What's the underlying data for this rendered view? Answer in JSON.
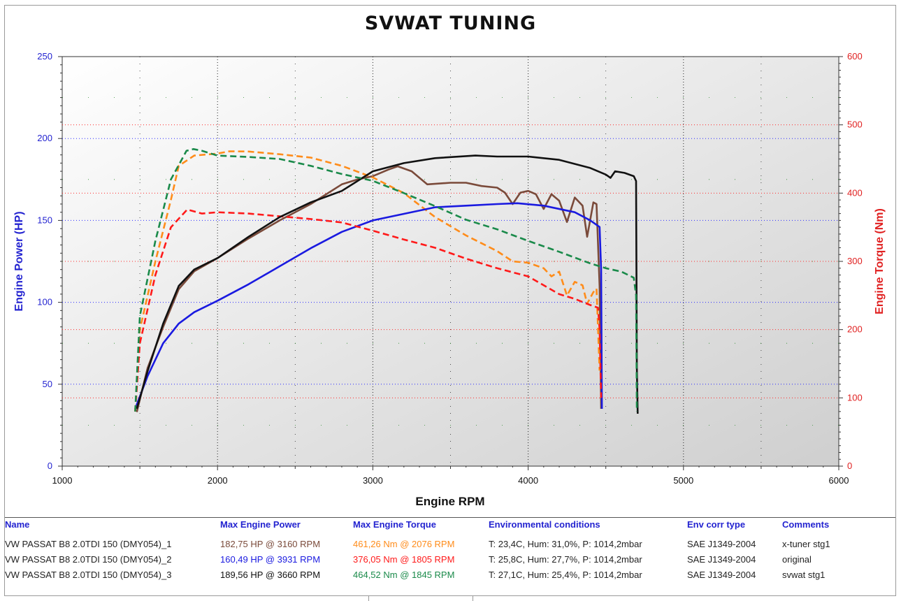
{
  "chart_data": {
    "type": "line",
    "title": "SVWAT TUNING",
    "xlabel": "Engine RPM",
    "ylabel_left": "Engine Power (HP)",
    "ylabel_right": "Engine Torque (Nm)",
    "xlim": [
      1000,
      6000
    ],
    "ylim_left": [
      0,
      250
    ],
    "ylim_right": [
      0,
      600
    ],
    "x_ticks": [
      "1000",
      "2000",
      "3000",
      "4000",
      "5000",
      "6000"
    ],
    "y_ticks_left": [
      "0",
      "50",
      "100",
      "150",
      "200",
      "250"
    ],
    "y_ticks_right": [
      "0",
      "100",
      "200",
      "300",
      "400",
      "500",
      "600"
    ],
    "grid": true,
    "series": [
      {
        "name": "VW PASSAT B8 2.0TDI 150 (DMY054)_1",
        "kind": "power",
        "axis": "left",
        "color": "#7a4a3a",
        "dash": "solid",
        "points": [
          [
            1480,
            33
          ],
          [
            1550,
            60
          ],
          [
            1650,
            85
          ],
          [
            1750,
            108
          ],
          [
            1850,
            119
          ],
          [
            2000,
            127
          ],
          [
            2200,
            139
          ],
          [
            2400,
            150
          ],
          [
            2600,
            160
          ],
          [
            2800,
            172
          ],
          [
            2900,
            175
          ],
          [
            3000,
            177
          ],
          [
            3100,
            181
          ],
          [
            3160,
            183
          ],
          [
            3250,
            180
          ],
          [
            3350,
            172
          ],
          [
            3500,
            173
          ],
          [
            3600,
            173
          ],
          [
            3700,
            171
          ],
          [
            3800,
            170
          ],
          [
            3850,
            167
          ],
          [
            3900,
            160
          ],
          [
            3950,
            167
          ],
          [
            4000,
            168
          ],
          [
            4050,
            166
          ],
          [
            4100,
            157
          ],
          [
            4150,
            166
          ],
          [
            4200,
            162
          ],
          [
            4250,
            149
          ],
          [
            4300,
            164
          ],
          [
            4350,
            159
          ],
          [
            4380,
            140
          ],
          [
            4420,
            161
          ],
          [
            4440,
            160
          ],
          [
            4460,
            110
          ],
          [
            4470,
            35
          ]
        ]
      },
      {
        "name": "VW PASSAT B8 2.0TDI 150 (DMY054)_1",
        "kind": "torque",
        "axis": "right",
        "color": "#ff8c1a",
        "dash": "dashed",
        "points": [
          [
            1470,
            80
          ],
          [
            1500,
            200
          ],
          [
            1600,
            300
          ],
          [
            1700,
            390
          ],
          [
            1750,
            440
          ],
          [
            1850,
            455
          ],
          [
            2000,
            458
          ],
          [
            2076,
            461.3
          ],
          [
            2200,
            461
          ],
          [
            2400,
            457
          ],
          [
            2600,
            452
          ],
          [
            2800,
            440
          ],
          [
            3000,
            423
          ],
          [
            3200,
            400
          ],
          [
            3400,
            365
          ],
          [
            3600,
            338
          ],
          [
            3800,
            315
          ],
          [
            3900,
            300
          ],
          [
            4000,
            298
          ],
          [
            4100,
            290
          ],
          [
            4150,
            278
          ],
          [
            4200,
            285
          ],
          [
            4250,
            250
          ],
          [
            4300,
            270
          ],
          [
            4350,
            265
          ],
          [
            4380,
            238
          ],
          [
            4420,
            255
          ],
          [
            4440,
            260
          ],
          [
            4450,
            200
          ],
          [
            4460,
            140
          ]
        ]
      },
      {
        "name": "VW PASSAT B8 2.0TDI 150 (DMY054)_2",
        "kind": "power",
        "axis": "left",
        "color": "#1a1ae0",
        "dash": "solid",
        "points": [
          [
            1470,
            35
          ],
          [
            1550,
            55
          ],
          [
            1650,
            75
          ],
          [
            1750,
            87
          ],
          [
            1850,
            94
          ],
          [
            2000,
            101
          ],
          [
            2200,
            111
          ],
          [
            2400,
            122
          ],
          [
            2600,
            133
          ],
          [
            2800,
            143
          ],
          [
            3000,
            150
          ],
          [
            3200,
            154
          ],
          [
            3400,
            158
          ],
          [
            3600,
            159
          ],
          [
            3800,
            160
          ],
          [
            3931,
            160.5
          ],
          [
            4100,
            159
          ],
          [
            4300,
            155
          ],
          [
            4400,
            150
          ],
          [
            4460,
            146
          ],
          [
            4470,
            120
          ],
          [
            4475,
            35
          ]
        ]
      },
      {
        "name": "VW PASSAT B8 2.0TDI 150 (DMY054)_2",
        "kind": "torque",
        "axis": "right",
        "color": "#ff1a1a",
        "dash": "dashed",
        "points": [
          [
            1470,
            80
          ],
          [
            1500,
            180
          ],
          [
            1600,
            280
          ],
          [
            1700,
            350
          ],
          [
            1805,
            376
          ],
          [
            1900,
            370
          ],
          [
            2000,
            372
          ],
          [
            2200,
            370
          ],
          [
            2400,
            366
          ],
          [
            2600,
            362
          ],
          [
            2800,
            357
          ],
          [
            3000,
            345
          ],
          [
            3200,
            332
          ],
          [
            3400,
            320
          ],
          [
            3600,
            304
          ],
          [
            3800,
            290
          ],
          [
            4000,
            278
          ],
          [
            4200,
            252
          ],
          [
            4300,
            245
          ],
          [
            4400,
            236
          ],
          [
            4450,
            232
          ],
          [
            4460,
            200
          ],
          [
            4470,
            100
          ]
        ]
      },
      {
        "name": "VW PASSAT B8 2.0TDI 150 (DMY054)_3",
        "kind": "power",
        "axis": "left",
        "color": "#111111",
        "dash": "solid",
        "points": [
          [
            1480,
            35
          ],
          [
            1550,
            58
          ],
          [
            1650,
            87
          ],
          [
            1750,
            110
          ],
          [
            1850,
            120
          ],
          [
            2000,
            127
          ],
          [
            2200,
            140
          ],
          [
            2400,
            152
          ],
          [
            2600,
            161
          ],
          [
            2800,
            168
          ],
          [
            3000,
            180
          ],
          [
            3200,
            185
          ],
          [
            3400,
            188
          ],
          [
            3660,
            189.6
          ],
          [
            3800,
            189
          ],
          [
            4000,
            189
          ],
          [
            4200,
            187
          ],
          [
            4400,
            182
          ],
          [
            4500,
            178
          ],
          [
            4530,
            176
          ],
          [
            4560,
            180
          ],
          [
            4620,
            179
          ],
          [
            4680,
            177
          ],
          [
            4695,
            174
          ],
          [
            4700,
            60
          ],
          [
            4705,
            32
          ]
        ]
      },
      {
        "name": "VW PASSAT B8 2.0TDI 150 (DMY054)_3",
        "kind": "torque",
        "axis": "right",
        "color": "#1a8a4a",
        "dash": "dashed",
        "points": [
          [
            1470,
            80
          ],
          [
            1500,
            220
          ],
          [
            1600,
            330
          ],
          [
            1700,
            420
          ],
          [
            1800,
            462
          ],
          [
            1845,
            464.5
          ],
          [
            1900,
            462
          ],
          [
            2000,
            455
          ],
          [
            2200,
            453
          ],
          [
            2400,
            450
          ],
          [
            2600,
            440
          ],
          [
            2800,
            428
          ],
          [
            3000,
            418
          ],
          [
            3200,
            400
          ],
          [
            3400,
            381
          ],
          [
            3600,
            361
          ],
          [
            3800,
            347
          ],
          [
            4000,
            330
          ],
          [
            4200,
            314
          ],
          [
            4400,
            297
          ],
          [
            4500,
            290
          ],
          [
            4600,
            285
          ],
          [
            4680,
            276
          ],
          [
            4695,
            250
          ],
          [
            4700,
            80
          ]
        ]
      }
    ]
  },
  "table": {
    "headers": [
      "Name",
      "Max Engine Power",
      "Max Engine Torque",
      "Environmental conditions",
      "Env corr type",
      "Comments"
    ],
    "header_color": "#2323d0",
    "rows": [
      {
        "name": "VW PASSAT B8 2.0TDI 150 (DMY054)_1",
        "power": "182,75 HP @ 3160 RPM",
        "power_color": "#7a4a3a",
        "torque": "461,26 Nm @ 2076 RPM",
        "torque_color": "#ff8c1a",
        "env": "T: 23,4C, Hum: 31,0%, P: 1014,2mbar",
        "corr": "SAE J1349-2004",
        "comment": "x-tuner stg1"
      },
      {
        "name": "VW PASSAT B8 2.0TDI 150 (DMY054)_2",
        "power": "160,49 HP @ 3931 RPM",
        "power_color": "#1a1ae0",
        "torque": "376,05 Nm @ 1805 RPM",
        "torque_color": "#ff1a1a",
        "env": "T: 25,8C, Hum: 27,7%, P: 1014,2mbar",
        "corr": "SAE J1349-2004",
        "comment": "original"
      },
      {
        "name": "VW PASSAT B8 2.0TDI 150 (DMY054)_3",
        "power": "189,56 HP @ 3660 RPM",
        "power_color": "#111111",
        "torque": "464,52 Nm @ 1845 RPM",
        "torque_color": "#1a8a4a",
        "env": "T: 27,1C, Hum: 25,4%, P: 1014,2mbar",
        "corr": "SAE J1349-2004",
        "comment": "svwat stg1"
      }
    ]
  },
  "colors": {
    "left_axis": "#2323d0",
    "right_axis": "#e02020",
    "grid_left": "#2a2aff",
    "grid_right": "#ff2a2a",
    "grid_x": "#222222"
  }
}
